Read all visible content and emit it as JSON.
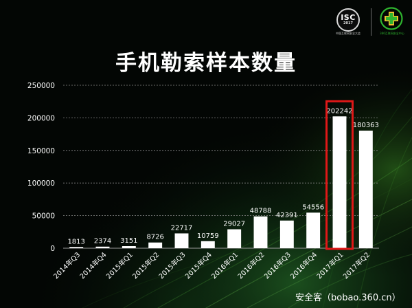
{
  "slide": {
    "title": "手机勒索样本数量",
    "logo_isc": {
      "text": "ISC",
      "year": "2017",
      "caption": "中国互联网安全大会"
    },
    "logo_360": {
      "icon": "360-cross-icon",
      "caption": "360互联网安全中心",
      "accent": "#2fb52f"
    },
    "watermark": "安全客（bobao.360.cn）"
  },
  "chart_data": {
    "type": "bar",
    "title": "手机勒索样本数量",
    "xlabel": "",
    "ylabel": "",
    "ylim": [
      0,
      250000
    ],
    "yticks": [
      0,
      50000,
      100000,
      150000,
      200000,
      250000
    ],
    "categories": [
      "2014年Q3",
      "2014年Q4",
      "2015年Q1",
      "2015年Q2",
      "2015年Q3",
      "2015年Q4",
      "2016年Q1",
      "2016年Q2",
      "2016年Q3",
      "2016年Q4",
      "2017年Q1",
      "2017年Q2"
    ],
    "values": [
      1813,
      2374,
      3151,
      8726,
      22717,
      10759,
      29027,
      48788,
      42391,
      54556,
      202242,
      180363
    ],
    "grid": true,
    "bar_color": "#ffffff",
    "highlight": {
      "category": "2017年Q1",
      "color": "#e01818"
    }
  }
}
